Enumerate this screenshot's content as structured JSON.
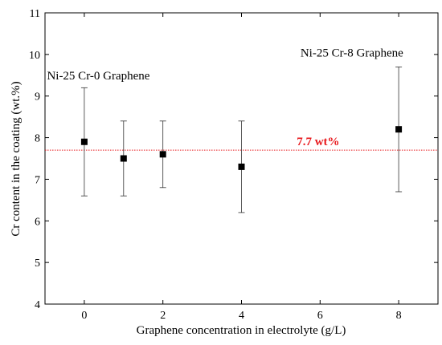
{
  "chart_data": {
    "type": "scatter",
    "xlabel": "Graphene concentration in electrolyte (g/L)",
    "ylabel": "Cr content in the coating (wt.%)",
    "xlim": [
      -1,
      9
    ],
    "ylim": [
      4,
      11
    ],
    "xticks": [
      0,
      2,
      4,
      6,
      8
    ],
    "yticks": [
      4,
      5,
      6,
      7,
      8,
      9,
      10,
      11
    ],
    "xtick_labels": [
      "0",
      "2",
      "4",
      "6",
      "8"
    ],
    "ytick_labels": [
      "4",
      "5",
      "6",
      "7",
      "8",
      "9",
      "10",
      "11"
    ],
    "grid": false,
    "series": [
      {
        "marker": "square",
        "color": "#000000",
        "points": [
          {
            "x": 0,
            "y": 7.9,
            "err_low": 6.6,
            "err_high": 9.2
          },
          {
            "x": 1,
            "y": 7.5,
            "err_low": 6.6,
            "err_high": 8.4
          },
          {
            "x": 2,
            "y": 7.6,
            "err_low": 6.8,
            "err_high": 8.4
          },
          {
            "x": 4,
            "y": 7.3,
            "err_low": 6.2,
            "err_high": 8.4
          },
          {
            "x": 8,
            "y": 8.2,
            "err_low": 6.7,
            "err_high": 9.7
          }
        ]
      }
    ],
    "reference_line": {
      "y": 7.7,
      "label": "7.7 wt%",
      "color": "#e8171b",
      "style": "dotted"
    },
    "annotations": [
      {
        "text": "Ni-25 Cr-0 Graphene",
        "x": -0.95,
        "y": 9.4
      },
      {
        "text": "Ni-25 Cr-8 Graphene",
        "x": 5.5,
        "y": 9.95
      }
    ]
  }
}
